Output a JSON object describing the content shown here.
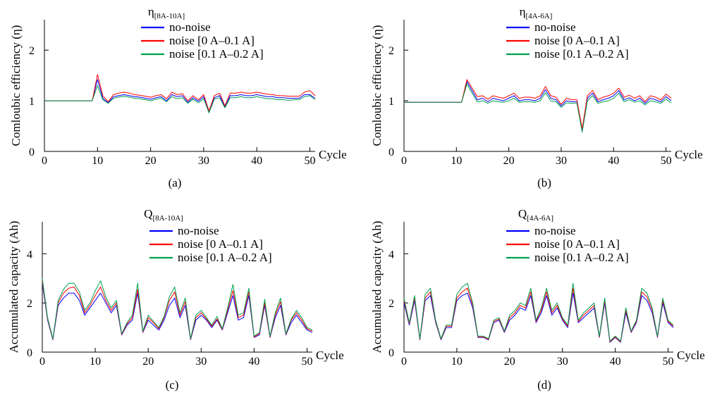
{
  "series_colors": {
    "no_noise": "#0000ff",
    "noise_low": "#ff0000",
    "noise_high": "#00a050"
  },
  "chart_data": [
    {
      "type": "line",
      "title_symbol": "η",
      "title_subscript": "[8A-10A]",
      "caption": "(a)",
      "xlabel": "Cycle",
      "ylabel": "Comloubic efficiency (η)",
      "xlim": [
        0,
        51
      ],
      "ylim": [
        0,
        2.6
      ],
      "xticks": [
        "0",
        "10",
        "20",
        "30",
        "40",
        "50"
      ],
      "yticks": [
        "0",
        "1",
        "2"
      ],
      "legend": [
        "no-noise",
        "noise [0 A–0.1 A]",
        "noise [0.1 A–0.2 A]"
      ],
      "x": [
        0,
        1,
        2,
        3,
        4,
        5,
        6,
        7,
        8,
        9,
        10,
        11,
        12,
        13,
        14,
        15,
        16,
        17,
        18,
        19,
        20,
        21,
        22,
        23,
        24,
        25,
        26,
        27,
        28,
        29,
        30,
        31,
        32,
        33,
        34,
        35,
        36,
        37,
        38,
        39,
        40,
        41,
        42,
        43,
        44,
        45,
        46,
        47,
        48,
        49,
        50,
        51
      ],
      "series": [
        {
          "name": "no-noise",
          "values": [
            1.0,
            1.0,
            1.0,
            1.0,
            1.0,
            1.0,
            1.0,
            1.0,
            1.0,
            1.0,
            1.42,
            1.05,
            0.96,
            1.08,
            1.1,
            1.12,
            1.1,
            1.08,
            1.07,
            1.05,
            1.03,
            1.06,
            1.08,
            1.0,
            1.12,
            1.08,
            1.1,
            0.97,
            1.06,
            0.99,
            1.08,
            0.78,
            1.06,
            1.1,
            0.88,
            1.1,
            1.1,
            1.12,
            1.1,
            1.1,
            1.12,
            1.1,
            1.08,
            1.08,
            1.06,
            1.06,
            1.05,
            1.05,
            1.05,
            1.12,
            1.12,
            1.05
          ]
        },
        {
          "name": "noise [0 A–0.1 A]",
          "values": [
            1.0,
            1.0,
            1.0,
            1.0,
            1.0,
            1.0,
            1.0,
            1.0,
            1.0,
            1.0,
            1.52,
            1.1,
            0.98,
            1.12,
            1.15,
            1.17,
            1.15,
            1.12,
            1.11,
            1.09,
            1.07,
            1.1,
            1.12,
            1.04,
            1.17,
            1.12,
            1.14,
            1.0,
            1.1,
            1.02,
            1.12,
            0.8,
            1.1,
            1.15,
            0.9,
            1.15,
            1.15,
            1.17,
            1.15,
            1.15,
            1.17,
            1.15,
            1.13,
            1.12,
            1.1,
            1.1,
            1.09,
            1.09,
            1.09,
            1.17,
            1.2,
            1.1
          ]
        },
        {
          "name": "noise [0.1 A–0.2 A]",
          "values": [
            1.0,
            1.0,
            1.0,
            1.0,
            1.0,
            1.0,
            1.0,
            1.0,
            1.0,
            1.0,
            1.3,
            1.02,
            0.95,
            1.05,
            1.07,
            1.09,
            1.07,
            1.05,
            1.04,
            1.02,
            1.0,
            1.03,
            1.05,
            0.98,
            1.08,
            1.04,
            1.06,
            0.95,
            1.03,
            0.96,
            1.04,
            0.76,
            1.03,
            1.06,
            0.86,
            1.06,
            1.06,
            1.08,
            1.06,
            1.06,
            1.08,
            1.06,
            1.04,
            1.04,
            1.02,
            1.02,
            1.01,
            1.02,
            1.02,
            1.08,
            1.1,
            1.02
          ]
        }
      ]
    },
    {
      "type": "line",
      "title_symbol": "η",
      "title_subscript": "[4A-6A]",
      "caption": "(b)",
      "xlabel": "Cycle",
      "ylabel": "Comloubic efficiency (η)",
      "xlim": [
        0,
        51
      ],
      "ylim": [
        0,
        2.6
      ],
      "xticks": [
        "0",
        "10",
        "20",
        "30",
        "40",
        "50"
      ],
      "yticks": [
        "0",
        "1",
        "2"
      ],
      "legend": [
        "no-noise",
        "noise [0 A–0.1 A]",
        "noise [0.1 A–0.2 A]"
      ],
      "x": [
        0,
        1,
        2,
        3,
        4,
        5,
        6,
        7,
        8,
        9,
        10,
        11,
        12,
        13,
        14,
        15,
        16,
        17,
        18,
        19,
        20,
        21,
        22,
        23,
        24,
        25,
        26,
        27,
        28,
        29,
        30,
        31,
        32,
        33,
        34,
        35,
        36,
        37,
        38,
        39,
        40,
        41,
        42,
        43,
        44,
        45,
        46,
        47,
        48,
        49,
        50,
        51
      ],
      "series": [
        {
          "name": "no-noise",
          "values": [
            0.97,
            0.97,
            0.97,
            0.97,
            0.97,
            0.97,
            0.97,
            0.97,
            0.97,
            0.97,
            0.97,
            0.97,
            1.38,
            1.2,
            1.02,
            1.05,
            0.98,
            1.05,
            1.02,
            1.0,
            1.05,
            1.1,
            1.0,
            1.02,
            1.02,
            1.0,
            1.05,
            1.22,
            1.05,
            1.02,
            0.9,
            1.0,
            0.98,
            0.98,
            0.42,
            1.05,
            1.15,
            0.98,
            1.02,
            1.05,
            1.1,
            1.2,
            1.02,
            1.06,
            1.0,
            1.05,
            0.95,
            1.05,
            1.02,
            0.98,
            1.08,
            1.0
          ]
        },
        {
          "name": "noise [0 A–0.1 A]",
          "values": [
            0.97,
            0.97,
            0.97,
            0.97,
            0.97,
            0.97,
            0.97,
            0.97,
            0.97,
            0.97,
            0.97,
            0.97,
            1.42,
            1.25,
            1.08,
            1.1,
            1.03,
            1.1,
            1.07,
            1.05,
            1.1,
            1.15,
            1.05,
            1.07,
            1.07,
            1.05,
            1.1,
            1.28,
            1.1,
            1.07,
            0.93,
            1.05,
            1.02,
            1.02,
            0.45,
            1.1,
            1.2,
            1.02,
            1.07,
            1.1,
            1.15,
            1.25,
            1.07,
            1.11,
            1.05,
            1.1,
            0.98,
            1.1,
            1.07,
            1.02,
            1.13,
            1.05
          ]
        },
        {
          "name": "noise [0.1 A–0.2 A]",
          "values": [
            0.97,
            0.97,
            0.97,
            0.97,
            0.97,
            0.97,
            0.97,
            0.97,
            0.97,
            0.97,
            0.97,
            0.97,
            1.33,
            1.15,
            0.98,
            1.0,
            0.95,
            1.0,
            0.98,
            0.97,
            1.0,
            1.05,
            0.97,
            0.98,
            0.98,
            0.97,
            1.0,
            1.16,
            1.0,
            0.98,
            0.87,
            0.96,
            0.95,
            0.95,
            0.38,
            1.0,
            1.1,
            0.95,
            0.98,
            1.0,
            1.05,
            1.15,
            0.98,
            1.02,
            0.97,
            1.0,
            0.92,
            1.0,
            0.98,
            0.95,
            1.03,
            0.96
          ]
        }
      ]
    },
    {
      "type": "line",
      "title_symbol": "Q",
      "title_subscript": "[8A-10A]",
      "caption": "(c)",
      "xlabel": "Cycle",
      "ylabel": "Accumulated capacity (Ah)",
      "xlim": [
        0,
        51
      ],
      "ylim": [
        0,
        5.3
      ],
      "xticks": [
        "0",
        "10",
        "20",
        "30",
        "40",
        "50"
      ],
      "yticks": [
        "0",
        "2",
        "4"
      ],
      "legend": [
        "no-noise",
        "noise [0 A–0.1 A]",
        "noise [0.1 A–0.2 A]"
      ],
      "x": [
        0,
        1,
        2,
        3,
        4,
        5,
        6,
        7,
        8,
        9,
        10,
        11,
        12,
        13,
        14,
        15,
        16,
        17,
        18,
        19,
        20,
        21,
        22,
        23,
        24,
        25,
        26,
        27,
        28,
        29,
        30,
        31,
        32,
        33,
        34,
        35,
        36,
        37,
        38,
        39,
        40,
        41,
        42,
        43,
        44,
        45,
        46,
        47,
        48,
        49,
        50,
        51
      ],
      "series": [
        {
          "name": "no-noise",
          "values": [
            2.8,
            1.3,
            0.5,
            1.9,
            2.2,
            2.4,
            2.4,
            2.1,
            1.5,
            1.8,
            2.1,
            2.4,
            2.0,
            1.6,
            1.9,
            0.7,
            1.1,
            1.3,
            2.4,
            0.8,
            1.3,
            1.1,
            0.9,
            1.3,
            1.9,
            2.2,
            1.4,
            1.9,
            0.5,
            1.3,
            1.5,
            1.3,
            1.0,
            1.3,
            0.9,
            1.6,
            2.3,
            1.3,
            1.4,
            2.3,
            0.6,
            0.7,
            1.9,
            0.6,
            1.4,
            1.9,
            0.7,
            1.2,
            1.5,
            1.2,
            0.9,
            0.8
          ]
        },
        {
          "name": "noise [0 A–0.1 A]",
          "values": [
            2.9,
            1.35,
            0.52,
            2.0,
            2.4,
            2.6,
            2.65,
            2.3,
            1.6,
            1.9,
            2.3,
            2.65,
            2.1,
            1.7,
            2.0,
            0.72,
            1.15,
            1.4,
            2.55,
            0.82,
            1.4,
            1.2,
            0.95,
            1.4,
            2.1,
            2.45,
            1.5,
            2.05,
            0.52,
            1.4,
            1.6,
            1.35,
            1.05,
            1.35,
            0.92,
            1.7,
            2.5,
            1.4,
            1.5,
            2.45,
            0.62,
            0.75,
            2.0,
            0.62,
            1.5,
            2.05,
            0.72,
            1.3,
            1.6,
            1.3,
            0.95,
            0.85
          ]
        },
        {
          "name": "noise [0.1 A–0.2 A]",
          "values": [
            3.0,
            1.4,
            0.55,
            2.1,
            2.55,
            2.8,
            2.8,
            2.45,
            1.7,
            2.0,
            2.5,
            2.9,
            2.25,
            1.8,
            2.1,
            0.75,
            1.2,
            1.5,
            2.8,
            0.85,
            1.5,
            1.25,
            1.0,
            1.45,
            2.25,
            2.65,
            1.6,
            2.2,
            0.55,
            1.5,
            1.7,
            1.4,
            1.1,
            1.45,
            0.95,
            1.8,
            2.75,
            1.5,
            1.6,
            2.6,
            0.65,
            0.8,
            2.15,
            0.65,
            1.6,
            2.2,
            0.75,
            1.35,
            1.7,
            1.4,
            1.0,
            0.9
          ]
        }
      ]
    },
    {
      "type": "line",
      "title_symbol": "Q",
      "title_subscript": "[4A-6A]",
      "caption": "(d)",
      "xlabel": "Cycle",
      "ylabel": "Accumulated capacity (Ah)",
      "xlim": [
        0,
        51
      ],
      "ylim": [
        0,
        5.3
      ],
      "xticks": [
        "0",
        "10",
        "20",
        "30",
        "40",
        "50"
      ],
      "yticks": [
        "0",
        "2",
        "4"
      ],
      "legend": [
        "no-noise",
        "noise [0 A–0.1 A]",
        "noise [0.1 A–0.2 A]"
      ],
      "x": [
        0,
        1,
        2,
        3,
        4,
        5,
        6,
        7,
        8,
        9,
        10,
        11,
        12,
        13,
        14,
        15,
        16,
        17,
        18,
        19,
        20,
        21,
        22,
        23,
        24,
        25,
        26,
        27,
        28,
        29,
        30,
        31,
        32,
        33,
        34,
        35,
        36,
        37,
        38,
        39,
        40,
        41,
        42,
        43,
        44,
        45,
        46,
        47,
        48,
        49,
        50,
        51
      ],
      "series": [
        {
          "name": "no-noise",
          "values": [
            2.0,
            1.1,
            2.1,
            0.5,
            2.1,
            2.3,
            1.2,
            0.5,
            1.0,
            1.0,
            2.1,
            2.3,
            2.4,
            1.8,
            0.6,
            0.6,
            0.5,
            1.2,
            1.3,
            0.8,
            1.3,
            1.5,
            1.8,
            1.7,
            2.3,
            1.2,
            1.6,
            2.3,
            1.5,
            1.8,
            1.3,
            1.0,
            2.4,
            1.2,
            1.4,
            1.6,
            1.8,
            0.6,
            2.0,
            0.4,
            0.6,
            0.4,
            1.6,
            0.8,
            1.2,
            2.3,
            2.1,
            1.6,
            0.6,
            2.0,
            1.2,
            1.0
          ]
        },
        {
          "name": "noise [0 A–0.1 A]",
          "values": [
            2.1,
            1.15,
            2.2,
            0.52,
            2.2,
            2.45,
            1.25,
            0.52,
            1.05,
            1.05,
            2.2,
            2.45,
            2.6,
            1.9,
            0.62,
            0.62,
            0.52,
            1.25,
            1.35,
            0.83,
            1.4,
            1.6,
            1.9,
            1.8,
            2.45,
            1.25,
            1.7,
            2.45,
            1.6,
            1.9,
            1.35,
            1.05,
            2.6,
            1.25,
            1.5,
            1.7,
            1.9,
            0.62,
            2.1,
            0.42,
            0.62,
            0.42,
            1.7,
            0.82,
            1.25,
            2.45,
            2.25,
            1.7,
            0.62,
            2.1,
            1.25,
            1.05
          ]
        },
        {
          "name": "noise [0.1 A–0.2 A]",
          "values": [
            2.2,
            1.2,
            2.3,
            0.55,
            2.35,
            2.6,
            1.3,
            0.55,
            1.1,
            1.1,
            2.35,
            2.65,
            2.8,
            2.0,
            0.65,
            0.65,
            0.55,
            1.3,
            1.4,
            0.86,
            1.5,
            1.7,
            2.0,
            1.9,
            2.6,
            1.3,
            1.8,
            2.6,
            1.7,
            2.0,
            1.4,
            1.1,
            2.8,
            1.3,
            1.6,
            1.8,
            2.0,
            0.65,
            2.2,
            0.45,
            0.65,
            0.45,
            1.8,
            0.85,
            1.3,
            2.6,
            2.4,
            1.8,
            0.65,
            2.2,
            1.3,
            1.1
          ]
        }
      ]
    }
  ]
}
